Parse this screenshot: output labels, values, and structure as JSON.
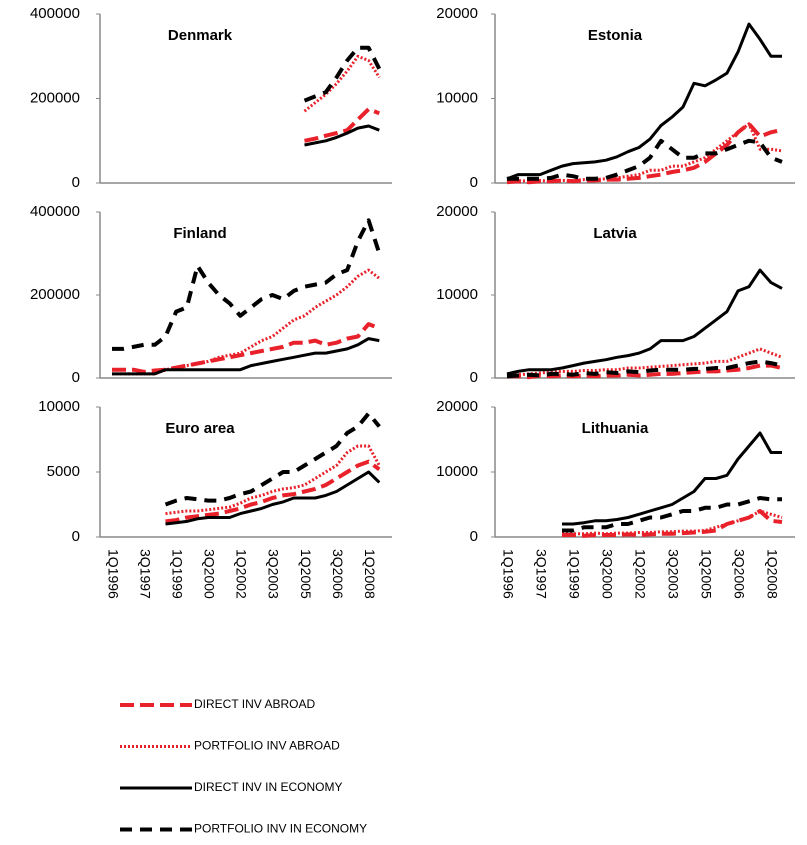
{
  "chart_data": [
    {
      "type": "line",
      "title": "Denmark",
      "ylim": [
        0,
        400000
      ],
      "yticks": [
        0,
        200000,
        400000
      ],
      "series": [
        {
          "values": [
            null,
            null,
            null,
            null,
            null,
            null,
            null,
            null,
            null,
            null,
            null,
            null,
            null,
            null,
            null,
            null,
            null,
            null,
            100000,
            105000,
            112000,
            118000,
            125000,
            150000,
            175000,
            165000
          ]
        },
        {
          "values": [
            null,
            null,
            null,
            null,
            null,
            null,
            null,
            null,
            null,
            null,
            null,
            null,
            null,
            null,
            null,
            null,
            null,
            null,
            170000,
            190000,
            210000,
            235000,
            265000,
            300000,
            290000,
            250000
          ]
        },
        {
          "values": [
            null,
            null,
            null,
            null,
            null,
            null,
            null,
            null,
            null,
            null,
            null,
            null,
            null,
            null,
            null,
            null,
            null,
            null,
            90000,
            95000,
            100000,
            108000,
            118000,
            130000,
            135000,
            125000
          ]
        },
        {
          "values": [
            null,
            null,
            null,
            null,
            null,
            null,
            null,
            null,
            null,
            null,
            null,
            null,
            null,
            null,
            null,
            null,
            null,
            null,
            195000,
            205000,
            215000,
            250000,
            290000,
            320000,
            320000,
            270000
          ]
        }
      ]
    },
    {
      "type": "line",
      "title": "Estonia",
      "ylim": [
        0,
        20000
      ],
      "yticks": [
        0,
        10000,
        20000
      ],
      "series": [
        {
          "values": [
            100,
            200,
            100,
            200,
            200,
            300,
            200,
            300,
            300,
            400,
            400,
            500,
            600,
            800,
            1000,
            1300,
            1500,
            1800,
            2500,
            3500,
            4500,
            6000,
            7000,
            5500,
            6000,
            6300
          ]
        },
        {
          "values": [
            200,
            300,
            200,
            300,
            200,
            300,
            300,
            400,
            400,
            500,
            600,
            800,
            1000,
            1500,
            1500,
            2000,
            2000,
            2500,
            3000,
            4000,
            5000,
            6000,
            7000,
            4000,
            4000,
            3800
          ]
        },
        {
          "values": [
            500,
            1000,
            1000,
            1000,
            1500,
            2000,
            2300,
            2400,
            2500,
            2700,
            3100,
            3700,
            4200,
            5200,
            6800,
            7800,
            9000,
            11800,
            11500,
            12200,
            13000,
            15500,
            18800,
            17000,
            15000,
            15000
          ]
        },
        {
          "values": [
            500,
            500,
            500,
            500,
            600,
            1000,
            800,
            500,
            500,
            600,
            1000,
            1500,
            2000,
            3000,
            5000,
            4000,
            3000,
            3000,
            3500,
            3500,
            4000,
            4500,
            5000,
            4800,
            3000,
            2500
          ]
        }
      ]
    },
    {
      "type": "line",
      "title": "Finland",
      "ylim": [
        0,
        400000
      ],
      "yticks": [
        0,
        200000,
        400000
      ],
      "series": [
        {
          "values": [
            20000,
            20000,
            20000,
            15000,
            18000,
            20000,
            25000,
            30000,
            35000,
            40000,
            45000,
            50000,
            55000,
            60000,
            65000,
            70000,
            75000,
            85000,
            85000,
            90000,
            80000,
            85000,
            95000,
            100000,
            130000,
            120000
          ]
        },
        {
          "values": [
            10000,
            10000,
            10000,
            10000,
            10000,
            20000,
            25000,
            30000,
            35000,
            40000,
            50000,
            55000,
            60000,
            75000,
            90000,
            100000,
            120000,
            140000,
            150000,
            170000,
            185000,
            200000,
            220000,
            245000,
            260000,
            240000
          ]
        },
        {
          "values": [
            10000,
            10000,
            10000,
            10000,
            10000,
            20000,
            20000,
            20000,
            20000,
            20000,
            20000,
            20000,
            20000,
            30000,
            35000,
            40000,
            45000,
            50000,
            55000,
            60000,
            60000,
            65000,
            70000,
            80000,
            95000,
            90000
          ]
        },
        {
          "values": [
            70000,
            70000,
            75000,
            80000,
            80000,
            100000,
            160000,
            170000,
            270000,
            230000,
            200000,
            180000,
            150000,
            170000,
            190000,
            200000,
            190000,
            210000,
            220000,
            225000,
            230000,
            250000,
            260000,
            330000,
            380000,
            300000
          ]
        }
      ]
    },
    {
      "type": "line",
      "title": "Latvia",
      "ylim": [
        0,
        20000
      ],
      "yticks": [
        0,
        10000,
        20000
      ],
      "series": [
        {
          "values": [
            200,
            200,
            100,
            300,
            200,
            300,
            200,
            300,
            200,
            300,
            300,
            400,
            300,
            400,
            500,
            500,
            600,
            700,
            800,
            800,
            900,
            1000,
            1200,
            1500,
            1500,
            1200
          ]
        },
        {
          "values": [
            300,
            400,
            500,
            600,
            700,
            800,
            800,
            900,
            900,
            1000,
            1000,
            1200,
            1200,
            1300,
            1400,
            1500,
            1600,
            1700,
            1800,
            2000,
            2000,
            2500,
            3000,
            3500,
            3000,
            2500
          ]
        },
        {
          "values": [
            500,
            800,
            1000,
            1000,
            1000,
            1200,
            1500,
            1800,
            2000,
            2200,
            2500,
            2700,
            3000,
            3500,
            4500,
            4500,
            4500,
            5000,
            6000,
            7000,
            8000,
            10500,
            11000,
            13000,
            11500,
            10800
          ]
        },
        {
          "values": [
            200,
            300,
            400,
            300,
            500,
            500,
            400,
            600,
            500,
            700,
            600,
            800,
            700,
            900,
            1000,
            1000,
            1000,
            1100,
            1100,
            1200,
            1200,
            1500,
            1800,
            2000,
            1800,
            1500
          ]
        }
      ]
    },
    {
      "type": "line",
      "title": "Euro area",
      "ylim": [
        0,
        10000
      ],
      "yticks": [
        0,
        5000,
        10000
      ],
      "categories": [
        "1Q1996",
        null,
        null,
        "3Q1997",
        null,
        null,
        "1Q1999",
        null,
        null,
        "3Q2000",
        null,
        null,
        "1Q2002",
        null,
        null,
        "3Q2003",
        null,
        null,
        "1Q2005",
        null,
        null,
        "3Q2006",
        null,
        null,
        "1Q2008",
        null
      ],
      "series": [
        {
          "values": [
            null,
            null,
            null,
            null,
            null,
            1200,
            1300,
            1500,
            1600,
            1700,
            1800,
            2000,
            2200,
            2500,
            2700,
            3000,
            3200,
            3300,
            3500,
            3700,
            4000,
            4500,
            5000,
            5500,
            5800,
            5200
          ]
        },
        {
          "values": [
            null,
            null,
            null,
            null,
            null,
            1800,
            1900,
            2000,
            2000,
            2100,
            2200,
            2300,
            2600,
            3000,
            3200,
            3500,
            3700,
            3800,
            4000,
            4500,
            5000,
            5500,
            6500,
            7000,
            7000,
            5500
          ]
        },
        {
          "values": [
            null,
            null,
            null,
            null,
            null,
            1000,
            1100,
            1200,
            1400,
            1500,
            1500,
            1500,
            1800,
            2000,
            2200,
            2500,
            2700,
            3000,
            3000,
            3000,
            3200,
            3500,
            4000,
            4500,
            5000,
            4200
          ]
        },
        {
          "values": [
            null,
            null,
            null,
            null,
            null,
            2500,
            2800,
            3000,
            2900,
            2800,
            2800,
            3000,
            3300,
            3500,
            4000,
            4500,
            5000,
            5000,
            5500,
            6000,
            6500,
            7000,
            8000,
            8500,
            9500,
            8500
          ]
        }
      ]
    },
    {
      "type": "line",
      "title": "Lithuania",
      "ylim": [
        0,
        20000
      ],
      "yticks": [
        0,
        10000,
        20000
      ],
      "categories": [
        "1Q1996",
        null,
        null,
        "3Q1997",
        null,
        null,
        "1Q1999",
        null,
        null,
        "3Q2000",
        null,
        null,
        "1Q2002",
        null,
        null,
        "3Q2003",
        null,
        null,
        "1Q2005",
        null,
        null,
        "3Q2006",
        null,
        null,
        "1Q2008",
        null
      ],
      "series": [
        {
          "values": [
            null,
            null,
            null,
            null,
            null,
            300,
            300,
            200,
            300,
            300,
            300,
            400,
            300,
            400,
            500,
            500,
            600,
            700,
            800,
            1000,
            2000,
            2500,
            3000,
            4000,
            2500,
            2300
          ]
        },
        {
          "values": [
            null,
            null,
            null,
            null,
            null,
            500,
            500,
            500,
            600,
            500,
            600,
            600,
            700,
            700,
            800,
            800,
            900,
            900,
            1000,
            1500,
            2000,
            2500,
            3000,
            4000,
            3500,
            3000
          ]
        },
        {
          "values": [
            null,
            null,
            null,
            null,
            null,
            2000,
            2000,
            2200,
            2500,
            2500,
            2700,
            3000,
            3500,
            4000,
            4500,
            5000,
            6000,
            7000,
            9000,
            9000,
            9500,
            12000,
            14000,
            16000,
            13000,
            13000
          ]
        },
        {
          "values": [
            null,
            null,
            null,
            null,
            null,
            1000,
            1000,
            1500,
            1500,
            1500,
            2000,
            2000,
            2500,
            3000,
            3000,
            3500,
            4000,
            4000,
            4500,
            4500,
            5000,
            5000,
            5500,
            6000,
            5800,
            5800
          ]
        }
      ]
    }
  ],
  "legend": [
    {
      "name": "DIRECT INV ABROAD",
      "color": "#e8212a",
      "style": "dash"
    },
    {
      "name": "PORTFOLIO INV ABROAD",
      "color": "#e8212a",
      "style": "dot"
    },
    {
      "name": "DIRECT INV IN ECONOMY",
      "color": "#000000",
      "style": "solid"
    },
    {
      "name": "PORTFOLIO INV IN ECONOMY",
      "color": "#000000",
      "style": "dash-wide"
    }
  ]
}
